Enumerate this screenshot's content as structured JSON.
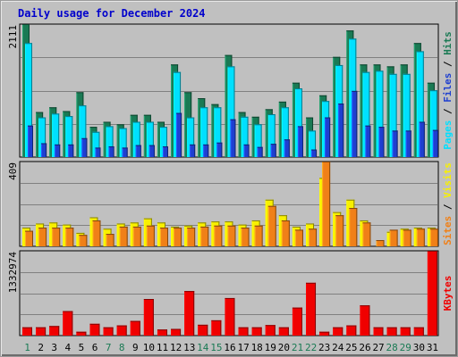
{
  "colors": {
    "background": "#c0c0c0",
    "title": "#0000cc",
    "hits": "#1a7a54",
    "files": "#00e0ff",
    "pages": "#1e3fd0",
    "visits": "#f8f000",
    "sites": "#f08018",
    "kbytes": "#f00000",
    "weekday_label": "#000000",
    "weekend_label": "#1a7a54",
    "separator": "#000000"
  },
  "title": "Daily usage for December 2024",
  "chart_data": [
    {
      "type": "bar",
      "panel": "hits-files-pages",
      "ymax_label": "2111",
      "ylim": [
        0,
        2111
      ],
      "right_label": [
        "Pages",
        "Files",
        "Hits"
      ],
      "grid": true,
      "categories": [
        "1",
        "2",
        "3",
        "4",
        "5",
        "6",
        "7",
        "8",
        "9",
        "10",
        "11",
        "12",
        "13",
        "14",
        "15",
        "16",
        "17",
        "18",
        "19",
        "20",
        "21",
        "22",
        "23",
        "24",
        "25",
        "26",
        "27",
        "28",
        "29",
        "30",
        "31"
      ],
      "series": [
        {
          "name": "Hits",
          "values": [
            2111,
            715,
            790,
            730,
            1030,
            480,
            560,
            520,
            670,
            670,
            560,
            1470,
            1030,
            935,
            840,
            1620,
            715,
            640,
            760,
            880,
            1180,
            630,
            980,
            1590,
            2010,
            1470,
            1470,
            1440,
            1470,
            1810,
            1180
          ]
        },
        {
          "name": "Files",
          "values": [
            1810,
            630,
            690,
            650,
            820,
            400,
            490,
            460,
            560,
            560,
            480,
            1350,
            630,
            790,
            790,
            1440,
            640,
            520,
            680,
            790,
            1090,
            420,
            890,
            1460,
            1880,
            1350,
            1370,
            1320,
            1320,
            1680,
            1060
          ]
        },
        {
          "name": "Pages",
          "values": [
            500,
            220,
            200,
            200,
            300,
            150,
            170,
            150,
            190,
            190,
            170,
            700,
            200,
            200,
            230,
            600,
            200,
            160,
            210,
            280,
            490,
            120,
            630,
            850,
            1050,
            500,
            480,
            420,
            420,
            560,
            430
          ]
        }
      ]
    },
    {
      "type": "bar",
      "panel": "visits-sites",
      "ymax_label": "409",
      "ylim": [
        0,
        409
      ],
      "right_label": [
        "Sites",
        "Visits"
      ],
      "grid": true,
      "categories": [
        "1",
        "2",
        "3",
        "4",
        "5",
        "6",
        "7",
        "8",
        "9",
        "10",
        "11",
        "12",
        "13",
        "14",
        "15",
        "16",
        "17",
        "18",
        "19",
        "20",
        "21",
        "22",
        "23",
        "24",
        "25",
        "26",
        "27",
        "28",
        "29",
        "30",
        "31"
      ],
      "series": [
        {
          "name": "Visits",
          "values": [
            90,
            110,
            115,
            105,
            65,
            140,
            85,
            110,
            115,
            135,
            115,
            95,
            100,
            115,
            120,
            120,
            105,
            125,
            225,
            150,
            95,
            110,
            330,
            165,
            225,
            125,
            0,
            70,
            85,
            90,
            90
          ]
        },
        {
          "name": "Sites",
          "values": [
            75,
            90,
            90,
            90,
            55,
            125,
            60,
            95,
            95,
            100,
            90,
            90,
            90,
            95,
            100,
            100,
            90,
            100,
            195,
            125,
            80,
            85,
            409,
            150,
            185,
            115,
            30,
            80,
            80,
            85,
            85
          ]
        }
      ]
    },
    {
      "type": "bar",
      "panel": "kbytes",
      "ymax_label": "1332974",
      "ylim": [
        0,
        1332974
      ],
      "right_label": [
        "KBytes"
      ],
      "grid": true,
      "categories": [
        "1",
        "2",
        "3",
        "4",
        "5",
        "6",
        "7",
        "8",
        "9",
        "10",
        "11",
        "12",
        "13",
        "14",
        "15",
        "16",
        "17",
        "18",
        "19",
        "20",
        "21",
        "22",
        "23",
        "24",
        "25",
        "26",
        "27",
        "28",
        "29",
        "30",
        "31"
      ],
      "series": [
        {
          "name": "KBytes",
          "values": [
            130000,
            130000,
            150000,
            385000,
            60000,
            185000,
            130000,
            160000,
            230000,
            575000,
            95000,
            105000,
            700000,
            170000,
            240000,
            590000,
            130000,
            130000,
            165000,
            130000,
            440000,
            830000,
            60000,
            130000,
            160000,
            475000,
            130000,
            130000,
            130000,
            130000,
            1332974
          ]
        }
      ]
    }
  ]
}
